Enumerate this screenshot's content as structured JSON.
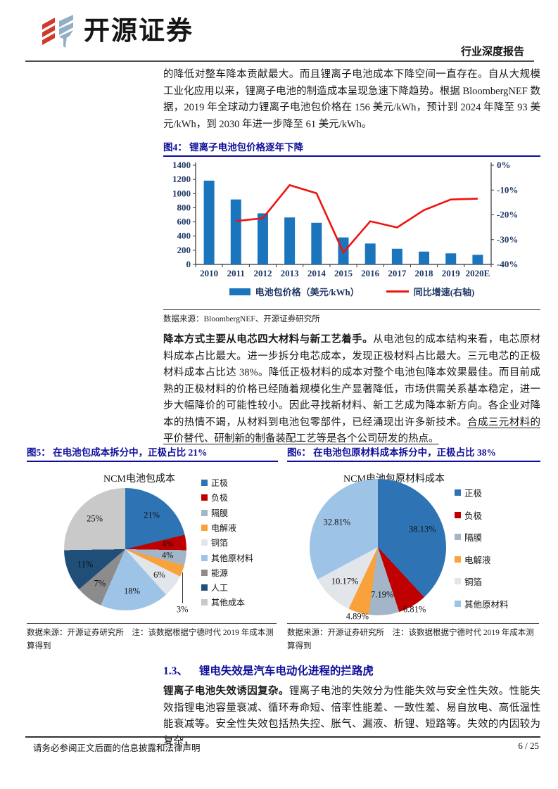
{
  "header": {
    "brand": "开源证券",
    "report_type": "行业深度报告"
  },
  "intro": "的降低对整车降本贡献最大。而且锂离子电池成本下降空间一直存在。自从大规模工业化应用以来，锂离子电池的制造成本呈现急速下降趋势。根据 BloombergNEF 数据，2019 年全球动力锂离子电池包价格在 156 美元/kWh，预计到 2024 年降至 93 美元/kWh，到 2030 年进一步降至 61 美元/kWh。",
  "figure4": {
    "title": "图4：  锂离子电池包价格逐年下降",
    "source": "数据来源：BloombergNEF、开源证券研究所"
  },
  "para2": {
    "lead": "降本方式主要从电芯四大材料与新工艺着手。",
    "body": "从电池包的成本结构来看，电芯原材料成本占比最大。进一步拆分电芯成本，发现正极材料占比最大。三元电芯的正极材料成本占比达 38%。降低正极材料的成本对整个电池包降本效果最佳。而目前成熟的正极材料的价格已经随着规模化生产显著降低，市场供需关系基本稳定，进一步大幅降价的可能性较小。因此寻找新材料、新工艺成为降本新方向。各企业对降本的热情不竭，从材料到电池包零部件，已经涌现出许多新技术。",
    "underlined": "合成三元材料的平价替代、研制新的制备装配工艺等是各个公司研发的热点。"
  },
  "figure5": {
    "title": "图5：  在电池包成本拆分中，正极占比 21%",
    "source": "数据来源：开源证券研究所　注：该数据根据宁德时代 2019 年成本测算得到"
  },
  "figure6": {
    "title": "图6：  在电池包原材料成本拆分中，正极占比 38%",
    "source": "数据来源：开源证券研究所　注：该数据根据宁德时代 2019 年成本测算得到"
  },
  "section_1_3": {
    "number": "1.3、",
    "title": "锂电失效是汽车电动化进程的拦路虎"
  },
  "para3": {
    "lead": "锂离子电池失效诱因复杂。",
    "body": "锂离子电池的失效分为性能失效与安全性失效。性能失效指锂电池容量衰减、循环寿命短、倍率性能差、一致性差、易自放电、高低温性能衰减等。安全性失效包括热失控、胀气、漏液、析锂、短路等。失效的内因较为复杂，"
  },
  "footer": {
    "disclaimer": "请务必参阅正文后面的信息披露和法律声明",
    "page": "6 / 25"
  },
  "colors": {
    "accent_navy": "#0e0e9c",
    "axis_text": "#1f3864",
    "bar_blue": "#1b75bc",
    "line_red": "#ee1310",
    "logo_red": "#d03a2b",
    "logo_gray_blue": "#93afc4"
  },
  "chart_data": [
    {
      "id": "fig4",
      "type": "bar",
      "title": "锂离子电池包价格逐年下降",
      "categories": [
        "2010",
        "2011",
        "2012",
        "2013",
        "2014",
        "2015",
        "2016",
        "2017",
        "2018",
        "2019",
        "2020E"
      ],
      "series": [
        {
          "name": "电池包价格（美元/kWh）",
          "kind": "bar",
          "axis": "left",
          "color": "#1b75bc",
          "values": [
            1183,
            917,
            721,
            663,
            588,
            381,
            295,
            221,
            181,
            156,
            135
          ]
        },
        {
          "name": "同比增速(右轴)",
          "kind": "line",
          "axis": "right",
          "color": "#ee1310",
          "values": [
            null,
            -22.5,
            -21.4,
            -8.0,
            -11.3,
            -35.2,
            -22.6,
            -25.1,
            -18.1,
            -13.8,
            -13.5
          ]
        }
      ],
      "left_axis": {
        "min": 0,
        "max": 1400,
        "step": 200
      },
      "right_axis": {
        "min": -40,
        "max": 0,
        "step": 10,
        "suffix": "%"
      },
      "legend_position": "bottom",
      "grid": false
    },
    {
      "id": "fig5",
      "type": "pie",
      "title": "NCM电池包成本",
      "slices": [
        {
          "label": "正极",
          "value": 21,
          "display": "21%",
          "color": "#2e74b5"
        },
        {
          "label": "负极",
          "value": 4,
          "display": "4%",
          "color": "#c00000"
        },
        {
          "label": "隔膜",
          "value": 4,
          "display": "4%",
          "color": "#a2b6c8"
        },
        {
          "label": "电解液",
          "value": 3,
          "display": "3%",
          "color": "#f9a13a",
          "outside": true,
          "leader": true
        },
        {
          "label": "铜箔",
          "value": 6,
          "display": "6%",
          "color": "#e2e5e9"
        },
        {
          "label": "其他原材料",
          "value": 18,
          "display": "18%",
          "color": "#9dc3e6"
        },
        {
          "label": "能源",
          "value": 7,
          "display": "7%",
          "color": "#8c8c8c"
        },
        {
          "label": "人工",
          "value": 11,
          "display": "11%",
          "color": "#1f4e79"
        },
        {
          "label": "其他成本",
          "value": 25,
          "display": "25%",
          "color": "#c9c9c9"
        }
      ]
    },
    {
      "id": "fig6",
      "type": "pie",
      "title": "NCM电池包原材料成本",
      "slices": [
        {
          "label": "正极",
          "value": 38.13,
          "display": "38.13%",
          "color": "#2e74b5"
        },
        {
          "label": "负极",
          "value": 6.81,
          "display": "6.81%",
          "color": "#c00000",
          "outside": true
        },
        {
          "label": "隔膜",
          "value": 7.19,
          "display": "7.19%",
          "color": "#a2b6c8"
        },
        {
          "label": "电解液",
          "value": 4.89,
          "display": "4.89%",
          "color": "#f9a13a",
          "outside": true
        },
        {
          "label": "铜箔",
          "value": 10.17,
          "display": "10.17%",
          "color": "#e2e5e9"
        },
        {
          "label": "其他原材料",
          "value": 32.81,
          "display": "32.81%",
          "color": "#9dc3e6"
        }
      ]
    }
  ]
}
